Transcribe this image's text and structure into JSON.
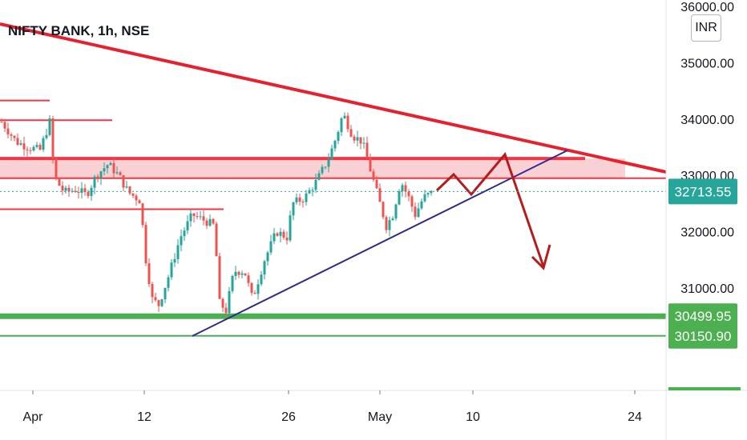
{
  "header": {
    "title": "NIFTY BANK, 1h, NSE"
  },
  "currency_label": "INR",
  "chart_data": {
    "type": "candlestick",
    "title": "NIFTY BANK, 1h, NSE",
    "ylim": [
      29300,
      36100
    ],
    "y_ticks": [
      "36000.00",
      "35000.00",
      "34000.00",
      "33000.00",
      "32000.00",
      "31000.00"
    ],
    "x_ticks": [
      "Apr",
      "12",
      "26",
      "May",
      "10",
      "24"
    ],
    "price_tags": [
      {
        "value": 32713.55,
        "label": "32713.55",
        "color": "#26a69a"
      },
      {
        "value": 30499.95,
        "label": "30499.95",
        "color": "#4caf50"
      },
      {
        "value": 30150.9,
        "label": "30150.90",
        "color": "#4caf50"
      }
    ],
    "horizontal_levels": [
      {
        "value": 34330,
        "color": "#f23645"
      },
      {
        "value": 33980,
        "color": "#f23645"
      },
      {
        "value": 32400,
        "color": "#f23645"
      },
      {
        "value": 30499.95,
        "color": "#4caf50"
      },
      {
        "value": 30150.9,
        "color": "#4caf50"
      }
    ],
    "resistance_zone": [
      32950,
      33300
    ],
    "colors": {
      "up": "#26a69a",
      "down": "#ef5350",
      "resistance": "#f23645",
      "support": "#4caf50",
      "trend": "#2e2a8f",
      "projection": "#b71c1c",
      "last_price": "#26a69a"
    }
  }
}
